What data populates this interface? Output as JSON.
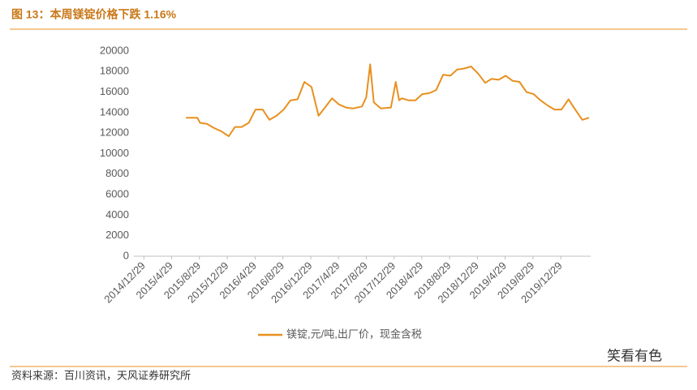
{
  "chart_data": {
    "type": "line",
    "title": "图 13：本周镁锭价格下跌 1.16%",
    "source": "资料来源：百川资讯，天风证券研究所",
    "watermark": "笑看有色",
    "x": [
      "2015/7/1",
      "2015/8/20",
      "2015/9/1",
      "2015/10/1",
      "2015/11/1",
      "2015/12/1",
      "2016/1/5",
      "2016/2/1",
      "2016/3/1",
      "2016/4/1",
      "2016/5/1",
      "2016/6/1",
      "2016/7/1",
      "2016/8/1",
      "2016/9/1",
      "2016/10/1",
      "2016/11/1",
      "2016/12/1",
      "2017/1/1",
      "2017/2/1",
      "2017/3/1",
      "2017/4/1",
      "2017/5/1",
      "2017/6/1",
      "2017/7/1",
      "2017/8/10",
      "2017/8/29",
      "2017/9/15",
      "2017/10/1",
      "2017/11/1",
      "2017/12/15",
      "2018/1/5",
      "2018/1/20",
      "2018/2/1",
      "2018/3/1",
      "2018/4/1",
      "2018/5/1",
      "2018/6/1",
      "2018/7/1",
      "2018/8/1",
      "2018/9/1",
      "2018/10/1",
      "2018/11/1",
      "2018/12/1",
      "2019/1/1",
      "2019/2/1",
      "2019/3/1",
      "2019/4/1",
      "2019/5/1",
      "2019/6/1",
      "2019/7/1",
      "2019/8/1",
      "2019/9/1",
      "2019/10/1",
      "2019/11/1",
      "2019/12/1",
      "2020/1/1",
      "2020/2/1",
      "2020/3/1",
      "2020/4/1",
      "2020/5/1"
    ],
    "series": [
      {
        "name": "镁锭,元/吨,出厂价，现金含税",
        "color": "#e8901f",
        "values": [
          13500,
          13500,
          13000,
          12900,
          12500,
          12200,
          11700,
          12600,
          12600,
          13000,
          14300,
          14300,
          13300,
          13700,
          14300,
          15200,
          15300,
          17000,
          16500,
          13700,
          14500,
          15400,
          14800,
          14500,
          14400,
          14600,
          15500,
          18700,
          15000,
          14400,
          14500,
          17000,
          15200,
          15400,
          15200,
          15200,
          15800,
          15900,
          16200,
          17700,
          17600,
          18200,
          18300,
          18500,
          17800,
          16900,
          17300,
          17200,
          17600,
          17100,
          17000,
          16000,
          15800,
          15200,
          14700,
          14300,
          14300,
          15300,
          14300,
          13300,
          13500
        ]
      }
    ],
    "xlim": [
      "2014/11/15",
      "2020/5/8"
    ],
    "xticks": [
      "2014/12/29",
      "2015/4/29",
      "2015/8/29",
      "2015/12/29",
      "2016/4/29",
      "2016/8/29",
      "2016/12/29",
      "2017/4/29",
      "2017/8/29",
      "2017/12/29",
      "2018/4/29",
      "2018/8/29",
      "2018/12/29",
      "2019/4/29",
      "2019/8/29",
      "2019/12/29"
    ],
    "ylim": [
      0,
      20000
    ],
    "yticks": [
      0,
      2000,
      4000,
      6000,
      8000,
      10000,
      12000,
      14000,
      16000,
      18000,
      20000
    ]
  }
}
